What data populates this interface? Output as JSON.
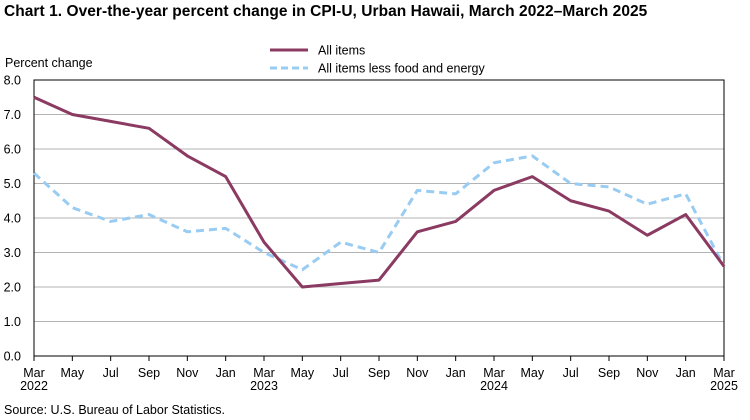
{
  "chart_data": {
    "type": "line",
    "title": "Chart 1. Over-the-year percent change in CPI-U, Urban Hawaii, March 2022–March 2025",
    "ylabel": "Percent change",
    "xlabel": "",
    "ylim": [
      0,
      8
    ],
    "yticks": [
      "0.0",
      "1.0",
      "2.0",
      "3.0",
      "4.0",
      "5.0",
      "6.0",
      "7.0",
      "8.0"
    ],
    "grid": true,
    "legend_position": "top-center",
    "x_ticks": [
      {
        "month": "Mar",
        "year": "2022"
      },
      {
        "month": "May",
        "year": ""
      },
      {
        "month": "Jul",
        "year": ""
      },
      {
        "month": "Sep",
        "year": ""
      },
      {
        "month": "Nov",
        "year": ""
      },
      {
        "month": "Jan",
        "year": ""
      },
      {
        "month": "Mar",
        "year": "2023"
      },
      {
        "month": "May",
        "year": ""
      },
      {
        "month": "Jul",
        "year": ""
      },
      {
        "month": "Sep",
        "year": ""
      },
      {
        "month": "Nov",
        "year": ""
      },
      {
        "month": "Jan",
        "year": ""
      },
      {
        "month": "Mar",
        "year": "2024"
      },
      {
        "month": "May",
        "year": ""
      },
      {
        "month": "Jul",
        "year": ""
      },
      {
        "month": "Sep",
        "year": ""
      },
      {
        "month": "Nov",
        "year": ""
      },
      {
        "month": "Jan",
        "year": ""
      },
      {
        "month": "Mar",
        "year": "2025"
      }
    ],
    "series": [
      {
        "name": "All items",
        "color": "#8b3a62",
        "style": "solid",
        "values": [
          7.5,
          7.0,
          6.8,
          6.6,
          5.8,
          5.2,
          3.3,
          2.0,
          2.1,
          2.2,
          3.6,
          3.9,
          4.8,
          5.2,
          4.5,
          4.2,
          3.5,
          4.1,
          2.6
        ]
      },
      {
        "name": "All items less food and energy",
        "color": "#99ccf2",
        "style": "dashed",
        "values": [
          5.3,
          4.3,
          3.9,
          4.1,
          3.6,
          3.7,
          3.0,
          2.5,
          3.3,
          3.0,
          4.8,
          4.7,
          5.6,
          5.8,
          5.0,
          4.9,
          4.4,
          4.7,
          2.6
        ]
      }
    ]
  },
  "source": "Source: U.S. Bureau of Labor Statistics."
}
